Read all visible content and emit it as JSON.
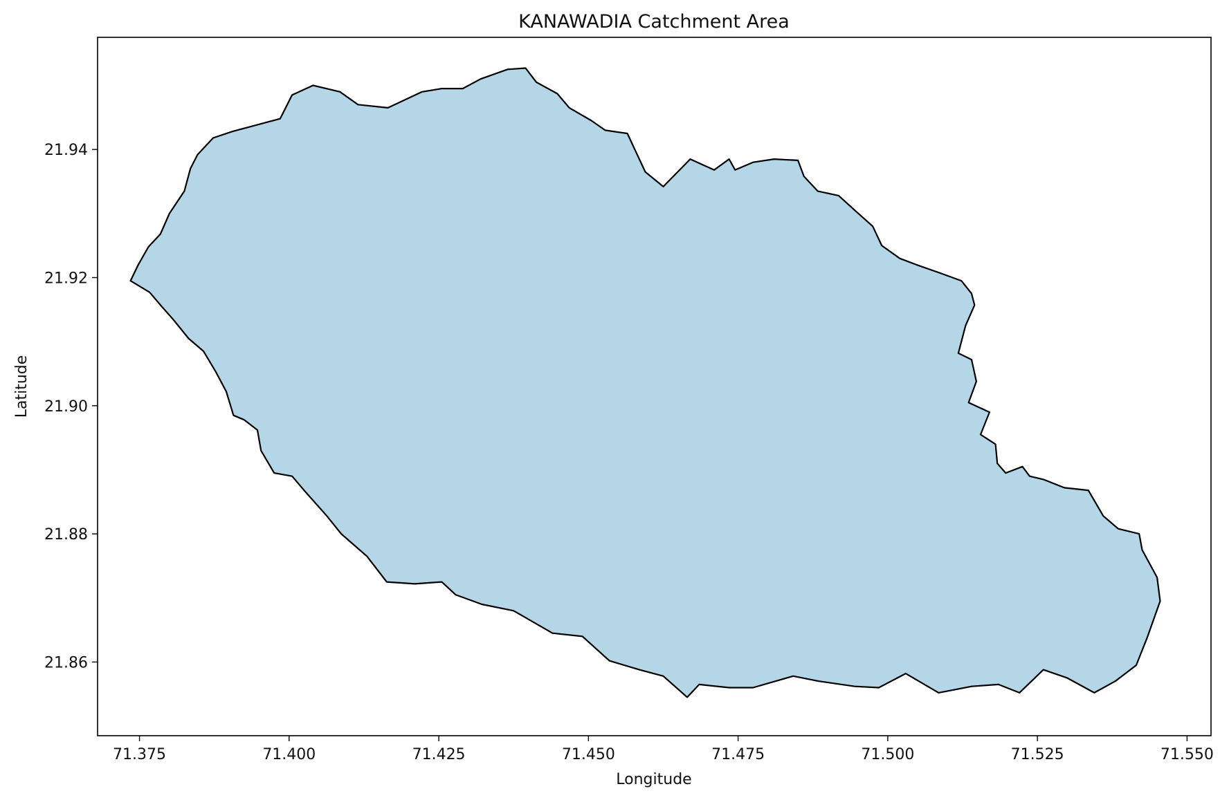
{
  "chart_data": {
    "type": "map",
    "title": "KANAWADIA Catchment Area",
    "xlabel": "Longitude",
    "ylabel": "Latitude",
    "xlim": [
      71.368,
      71.554
    ],
    "ylim": [
      21.8485,
      21.9575
    ],
    "xticks": [
      {
        "value": 71.375,
        "label": "71.375"
      },
      {
        "value": 71.4,
        "label": "71.400"
      },
      {
        "value": 71.425,
        "label": "71.425"
      },
      {
        "value": 71.45,
        "label": "71.450"
      },
      {
        "value": 71.475,
        "label": "71.475"
      },
      {
        "value": 71.5,
        "label": "71.500"
      },
      {
        "value": 71.525,
        "label": "71.525"
      },
      {
        "value": 71.55,
        "label": "71.550"
      }
    ],
    "yticks": [
      {
        "value": 21.86,
        "label": "21.86"
      },
      {
        "value": 21.88,
        "label": "21.88"
      },
      {
        "value": 21.9,
        "label": "21.90"
      },
      {
        "value": 21.92,
        "label": "21.92"
      },
      {
        "value": 21.94,
        "label": "21.94"
      }
    ],
    "grid": false,
    "fill_color": "#b4d6e6",
    "edge_color": "#000000",
    "boundary": [
      [
        71.3767,
        21.9177
      ],
      [
        71.3787,
        21.9155
      ],
      [
        71.3806,
        21.9135
      ],
      [
        71.3832,
        21.9105
      ],
      [
        71.3857,
        21.9085
      ],
      [
        71.3878,
        21.9052
      ],
      [
        71.3895,
        21.9022
      ],
      [
        71.3907,
        21.8985
      ],
      [
        71.3925,
        21.8978
      ],
      [
        71.3947,
        21.8962
      ],
      [
        71.3953,
        21.893
      ],
      [
        71.3975,
        21.8895
      ],
      [
        71.4005,
        21.889
      ],
      [
        71.4025,
        21.8868
      ],
      [
        71.4063,
        21.8828
      ],
      [
        71.4087,
        21.88
      ],
      [
        71.413,
        21.8765
      ],
      [
        71.4163,
        21.8725
      ],
      [
        71.421,
        21.8722
      ],
      [
        71.4255,
        21.8725
      ],
      [
        71.4278,
        21.8705
      ],
      [
        71.4322,
        21.869
      ],
      [
        71.4375,
        21.868
      ],
      [
        71.444,
        21.8645
      ],
      [
        71.449,
        21.864
      ],
      [
        71.4535,
        21.8602
      ],
      [
        71.4585,
        21.8588
      ],
      [
        71.4625,
        21.8578
      ],
      [
        71.4665,
        21.8545
      ],
      [
        71.4685,
        21.8565
      ],
      [
        71.4735,
        21.856
      ],
      [
        71.4775,
        21.856
      ],
      [
        71.4842,
        21.8578
      ],
      [
        71.4885,
        21.857
      ],
      [
        71.4945,
        21.8562
      ],
      [
        71.4985,
        21.856
      ],
      [
        71.503,
        21.8582
      ],
      [
        71.5085,
        21.8552
      ],
      [
        71.514,
        21.8562
      ],
      [
        71.5185,
        21.8565
      ],
      [
        71.522,
        21.8552
      ],
      [
        71.526,
        21.8588
      ],
      [
        71.53,
        21.8575
      ],
      [
        71.5345,
        21.8552
      ],
      [
        71.538,
        21.857
      ],
      [
        71.5415,
        21.8595
      ],
      [
        71.5433,
        21.8637
      ],
      [
        71.5455,
        21.8695
      ],
      [
        71.545,
        21.8732
      ],
      [
        71.5425,
        21.8775
      ],
      [
        71.542,
        21.88
      ],
      [
        71.5385,
        21.8808
      ],
      [
        71.536,
        21.8828
      ],
      [
        71.5335,
        21.8868
      ],
      [
        71.5295,
        21.8872
      ],
      [
        71.526,
        21.8885
      ],
      [
        71.5237,
        21.889
      ],
      [
        71.5225,
        21.8905
      ],
      [
        71.5197,
        21.8895
      ],
      [
        71.5183,
        21.891
      ],
      [
        71.518,
        21.894
      ],
      [
        71.5155,
        21.8955
      ],
      [
        71.517,
        21.899
      ],
      [
        71.5135,
        21.9005
      ],
      [
        71.5148,
        21.9038
      ],
      [
        71.514,
        21.9072
      ],
      [
        71.5118,
        21.9082
      ],
      [
        71.513,
        21.9125
      ],
      [
        71.5145,
        21.9157
      ],
      [
        71.514,
        21.9175
      ],
      [
        71.5123,
        21.9195
      ],
      [
        71.5085,
        21.9208
      ],
      [
        71.5048,
        21.922
      ],
      [
        71.502,
        21.923
      ],
      [
        71.499,
        21.925
      ],
      [
        71.4975,
        21.928
      ],
      [
        71.4945,
        21.9305
      ],
      [
        71.4918,
        21.9328
      ],
      [
        71.4883,
        21.9335
      ],
      [
        71.486,
        21.9358
      ],
      [
        71.485,
        21.9383
      ],
      [
        71.481,
        21.9385
      ],
      [
        71.4775,
        21.938
      ],
      [
        71.4745,
        21.9368
      ],
      [
        71.4735,
        21.9385
      ],
      [
        71.471,
        21.9368
      ],
      [
        71.467,
        21.9385
      ],
      [
        71.4625,
        21.9342
      ],
      [
        71.4595,
        21.9365
      ],
      [
        71.458,
        21.9395
      ],
      [
        71.4565,
        21.9425
      ],
      [
        71.4528,
        21.943
      ],
      [
        71.4505,
        21.9445
      ],
      [
        71.4468,
        21.9465
      ],
      [
        71.4448,
        21.9487
      ],
      [
        71.4413,
        21.9505
      ],
      [
        71.4395,
        21.9527
      ],
      [
        71.4365,
        21.9525
      ],
      [
        71.432,
        21.951
      ],
      [
        71.429,
        21.9495
      ],
      [
        71.4255,
        21.9495
      ],
      [
        71.4222,
        21.949
      ],
      [
        71.4165,
        21.9465
      ],
      [
        71.4115,
        21.947
      ],
      [
        71.4085,
        21.949
      ],
      [
        71.404,
        21.95
      ],
      [
        71.4005,
        21.9485
      ],
      [
        71.3985,
        21.9448
      ],
      [
        71.3945,
        21.9438
      ],
      [
        71.3905,
        21.9428
      ],
      [
        71.3873,
        21.9418
      ],
      [
        71.3847,
        21.9392
      ],
      [
        71.3835,
        21.937
      ],
      [
        71.3825,
        21.9335
      ],
      [
        71.38,
        21.93
      ],
      [
        71.3785,
        21.9268
      ],
      [
        71.3765,
        21.9248
      ],
      [
        71.3748,
        21.922
      ],
      [
        71.3735,
        21.9195
      ]
    ]
  }
}
